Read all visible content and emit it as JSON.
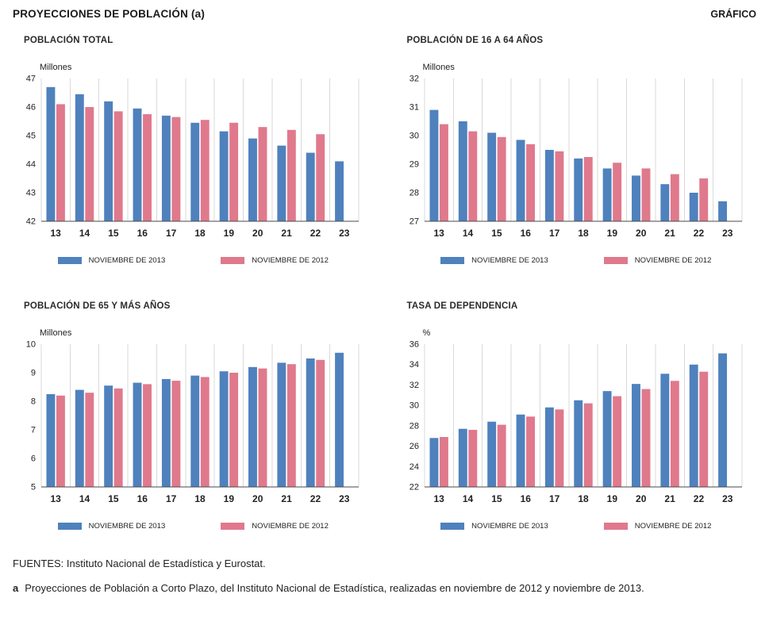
{
  "page": {
    "title": "PROYECCIONES DE POBLACIÓN (a)",
    "corner_label": "GRÁFICO",
    "sources": "FUENTES: Instituto Nacional de Estadística y Eurostat.",
    "footnote_marker": "a",
    "footnote_text": "Proyecciones de Población a Corto Plazo, del Instituto Nacional de Estadística, realizadas en noviembre de 2012 y noviembre de 2013."
  },
  "colors": {
    "series_2013": "#4f81bd",
    "series_2012": "#e0798c",
    "grid": "#d9d9d9",
    "axis": "#4a4a4a"
  },
  "legend": {
    "label_2013": "NOVIEMBRE DE 2013",
    "label_2012": "NOVIEMBRE DE 2012"
  },
  "chart_data": [
    {
      "type": "bar",
      "title": "POBLACIÓN TOTAL",
      "unit": "Millones",
      "categories": [
        "13",
        "14",
        "15",
        "16",
        "17",
        "18",
        "19",
        "20",
        "21",
        "22",
        "23"
      ],
      "series": [
        {
          "name": "NOVIEMBRE DE 2013",
          "values": [
            46.7,
            46.45,
            46.2,
            45.95,
            45.7,
            45.45,
            45.15,
            44.9,
            44.65,
            44.4,
            44.1
          ]
        },
        {
          "name": "NOVIEMBRE DE 2012",
          "values": [
            46.1,
            46.0,
            45.85,
            45.75,
            45.65,
            45.55,
            45.45,
            45.3,
            45.2,
            45.05,
            null
          ]
        }
      ],
      "ylim": [
        42,
        47
      ],
      "ytick_step": 1,
      "legend_position": "bottom",
      "grid": "vertical"
    },
    {
      "type": "bar",
      "title": "POBLACIÓN DE 16 A 64 AÑOS",
      "unit": "Millones",
      "categories": [
        "13",
        "14",
        "15",
        "16",
        "17",
        "18",
        "19",
        "20",
        "21",
        "22",
        "23"
      ],
      "series": [
        {
          "name": "NOVIEMBRE DE 2013",
          "values": [
            30.9,
            30.5,
            30.1,
            29.85,
            29.5,
            29.2,
            28.85,
            28.6,
            28.3,
            28.0,
            27.7
          ]
        },
        {
          "name": "NOVIEMBRE DE 2012",
          "values": [
            30.4,
            30.15,
            29.95,
            29.7,
            29.45,
            29.25,
            29.05,
            28.85,
            28.65,
            28.5,
            null
          ]
        }
      ],
      "ylim": [
        27,
        32
      ],
      "ytick_step": 1,
      "legend_position": "bottom",
      "grid": "vertical"
    },
    {
      "type": "bar",
      "title": "POBLACIÓN DE 65 Y MÁS AÑOS",
      "unit": "Millones",
      "categories": [
        "13",
        "14",
        "15",
        "16",
        "17",
        "18",
        "19",
        "20",
        "21",
        "22",
        "23"
      ],
      "series": [
        {
          "name": "NOVIEMBRE DE 2013",
          "values": [
            8.25,
            8.4,
            8.55,
            8.65,
            8.78,
            8.9,
            9.05,
            9.2,
            9.35,
            9.5,
            9.7
          ]
        },
        {
          "name": "NOVIEMBRE DE 2012",
          "values": [
            8.2,
            8.3,
            8.45,
            8.6,
            8.72,
            8.85,
            9.0,
            9.15,
            9.3,
            9.45,
            null
          ]
        }
      ],
      "ylim": [
        5,
        10
      ],
      "ytick_step": 1,
      "legend_position": "bottom",
      "grid": "vertical"
    },
    {
      "type": "bar",
      "title": "TASA DE DEPENDENCIA",
      "unit": "%",
      "categories": [
        "13",
        "14",
        "15",
        "16",
        "17",
        "18",
        "19",
        "20",
        "21",
        "22",
        "23"
      ],
      "series": [
        {
          "name": "NOVIEMBRE DE 2013",
          "values": [
            26.8,
            27.7,
            28.4,
            29.1,
            29.8,
            30.5,
            31.4,
            32.1,
            33.1,
            34.0,
            35.1
          ]
        },
        {
          "name": "NOVIEMBRE DE 2012",
          "values": [
            26.9,
            27.6,
            28.1,
            28.9,
            29.6,
            30.2,
            30.9,
            31.6,
            32.4,
            33.3,
            null
          ]
        }
      ],
      "ylim": [
        22,
        36
      ],
      "ytick_step": 2,
      "legend_position": "bottom",
      "grid": "vertical"
    }
  ]
}
